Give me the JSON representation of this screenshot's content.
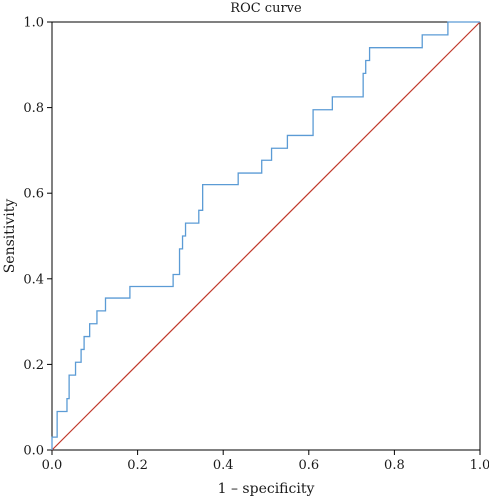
{
  "chart_data": {
    "type": "line",
    "title": "ROC curve",
    "xlabel": "1 – specificity",
    "ylabel": "Sensitivity",
    "xlim": [
      0,
      1
    ],
    "ylim": [
      0,
      1
    ],
    "x_ticks": [
      "0.0",
      "0.2",
      "0.4",
      "0.6",
      "0.8",
      "1.0"
    ],
    "y_ticks": [
      "0.0",
      "0.2",
      "0.4",
      "0.6",
      "0.8",
      "1.0"
    ],
    "grid": false,
    "legend": "none",
    "colors": {
      "roc_curve": "#5b9bd5",
      "reference_line": "#c0392b",
      "axis": "#000000"
    },
    "series": [
      {
        "values_shape": "step",
        "x": [
          0.0,
          0.0,
          0.012,
          0.012,
          0.02,
          0.02,
          0.035,
          0.035,
          0.04,
          0.04,
          0.055,
          0.055,
          0.068,
          0.068,
          0.075,
          0.075,
          0.088,
          0.088,
          0.105,
          0.105,
          0.125,
          0.125,
          0.182,
          0.182,
          0.283,
          0.283,
          0.298,
          0.298,
          0.305,
          0.305,
          0.312,
          0.312,
          0.33,
          0.33,
          0.343,
          0.343,
          0.352,
          0.352,
          0.435,
          0.435,
          0.49,
          0.49,
          0.513,
          0.513,
          0.55,
          0.55,
          0.61,
          0.61,
          0.655,
          0.655,
          0.727,
          0.727,
          0.733,
          0.733,
          0.742,
          0.742,
          0.865,
          0.865,
          0.925,
          0.925,
          1.0
        ],
        "y": [
          0.0,
          0.03,
          0.03,
          0.09,
          0.09,
          0.09,
          0.09,
          0.12,
          0.12,
          0.175,
          0.175,
          0.205,
          0.205,
          0.235,
          0.235,
          0.265,
          0.265,
          0.295,
          0.295,
          0.325,
          0.325,
          0.355,
          0.355,
          0.382,
          0.382,
          0.41,
          0.41,
          0.47,
          0.47,
          0.5,
          0.5,
          0.53,
          0.53,
          0.53,
          0.53,
          0.56,
          0.56,
          0.62,
          0.62,
          0.647,
          0.647,
          0.677,
          0.677,
          0.705,
          0.705,
          0.735,
          0.735,
          0.795,
          0.795,
          0.825,
          0.825,
          0.88,
          0.88,
          0.91,
          0.91,
          0.94,
          0.94,
          0.97,
          0.97,
          1.0,
          1.0
        ]
      },
      {
        "x": [
          0,
          1
        ],
        "y": [
          0,
          1
        ]
      }
    ]
  }
}
